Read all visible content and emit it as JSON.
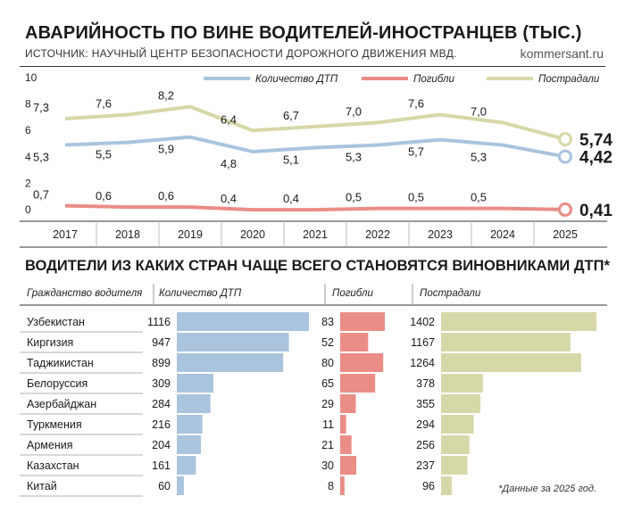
{
  "header": {
    "title": "АВАРИЙНОСТЬ ПО ВИНЕ ВОДИТЕЛЕЙ-ИНОСТРАНЦЕВ (ТЫС.)",
    "source": "ИСТОЧНИК: НАУЧНЫЙ ЦЕНТР БЕЗОПАСНОСТИ ДОРОЖНОГО ДВИЖЕНИЯ МВД.",
    "brand": "kommersant.ru"
  },
  "section2": {
    "title": "ВОДИТЕЛИ ИЗ КАКИХ СТРАН ЧАЩЕ ВСЕГО СТАНОВЯТСЯ ВИНОВНИКАМИ ДТП*",
    "col_country": "Гражданство водителя",
    "col_accidents": "Количество ДТП",
    "col_killed": "Погибли",
    "col_injured": "Пострадали",
    "footnote": "*Данные за 2025 год."
  },
  "colors": {
    "accidents": "#aac4de",
    "killed": "#ea8d86",
    "injured": "#d7d8a8"
  },
  "chart_data": [
    {
      "type": "line",
      "x": [
        "2017",
        "2018",
        "2019",
        "2020",
        "2021",
        "2022",
        "2023",
        "2024",
        "2025"
      ],
      "y_ticks": [
        "10",
        "8",
        "6",
        "4",
        "2",
        "0"
      ],
      "ylim": [
        0,
        10
      ],
      "legend_position": "top",
      "series": [
        {
          "name": "Количество ДТП",
          "values": [
            5.3,
            5.5,
            5.9,
            4.8,
            5.1,
            5.3,
            5.7,
            5.3,
            4.42
          ],
          "labels": [
            "5,3",
            "5,5",
            "5,9",
            "4,8",
            "5,1",
            "5,3",
            "5,7",
            "5,3",
            "4,42"
          ]
        },
        {
          "name": "Погибли",
          "values": [
            0.7,
            0.6,
            0.6,
            0.4,
            0.4,
            0.5,
            0.5,
            0.5,
            0.41
          ],
          "labels": [
            "0,7",
            "0,6",
            "0,6",
            "0,4",
            "0,4",
            "0,5",
            "0,5",
            "0,5",
            "0,41"
          ]
        },
        {
          "name": "Пострадали",
          "values": [
            7.3,
            7.6,
            8.2,
            6.4,
            6.7,
            7.0,
            7.6,
            7.0,
            5.74
          ],
          "labels": [
            "7,3",
            "7,6",
            "8,2",
            "6,4",
            "6,7",
            "7,0",
            "7,6",
            "7,0",
            "5,74"
          ]
        }
      ]
    },
    {
      "type": "bar",
      "orientation": "horizontal",
      "categories": [
        "Узбекистан",
        "Киргизия",
        "Таджикистан",
        "Белоруссия",
        "Азербайджан",
        "Туркмения",
        "Армения",
        "Казахстан",
        "Китай"
      ],
      "series": [
        {
          "name": "Количество ДТП",
          "values": [
            1116,
            947,
            899,
            309,
            284,
            216,
            204,
            161,
            60
          ]
        },
        {
          "name": "Погибли",
          "values": [
            83,
            52,
            80,
            65,
            29,
            11,
            21,
            30,
            8
          ]
        },
        {
          "name": "Пострадали",
          "values": [
            1402,
            1167,
            1264,
            378,
            355,
            294,
            256,
            237,
            96
          ]
        }
      ]
    }
  ]
}
